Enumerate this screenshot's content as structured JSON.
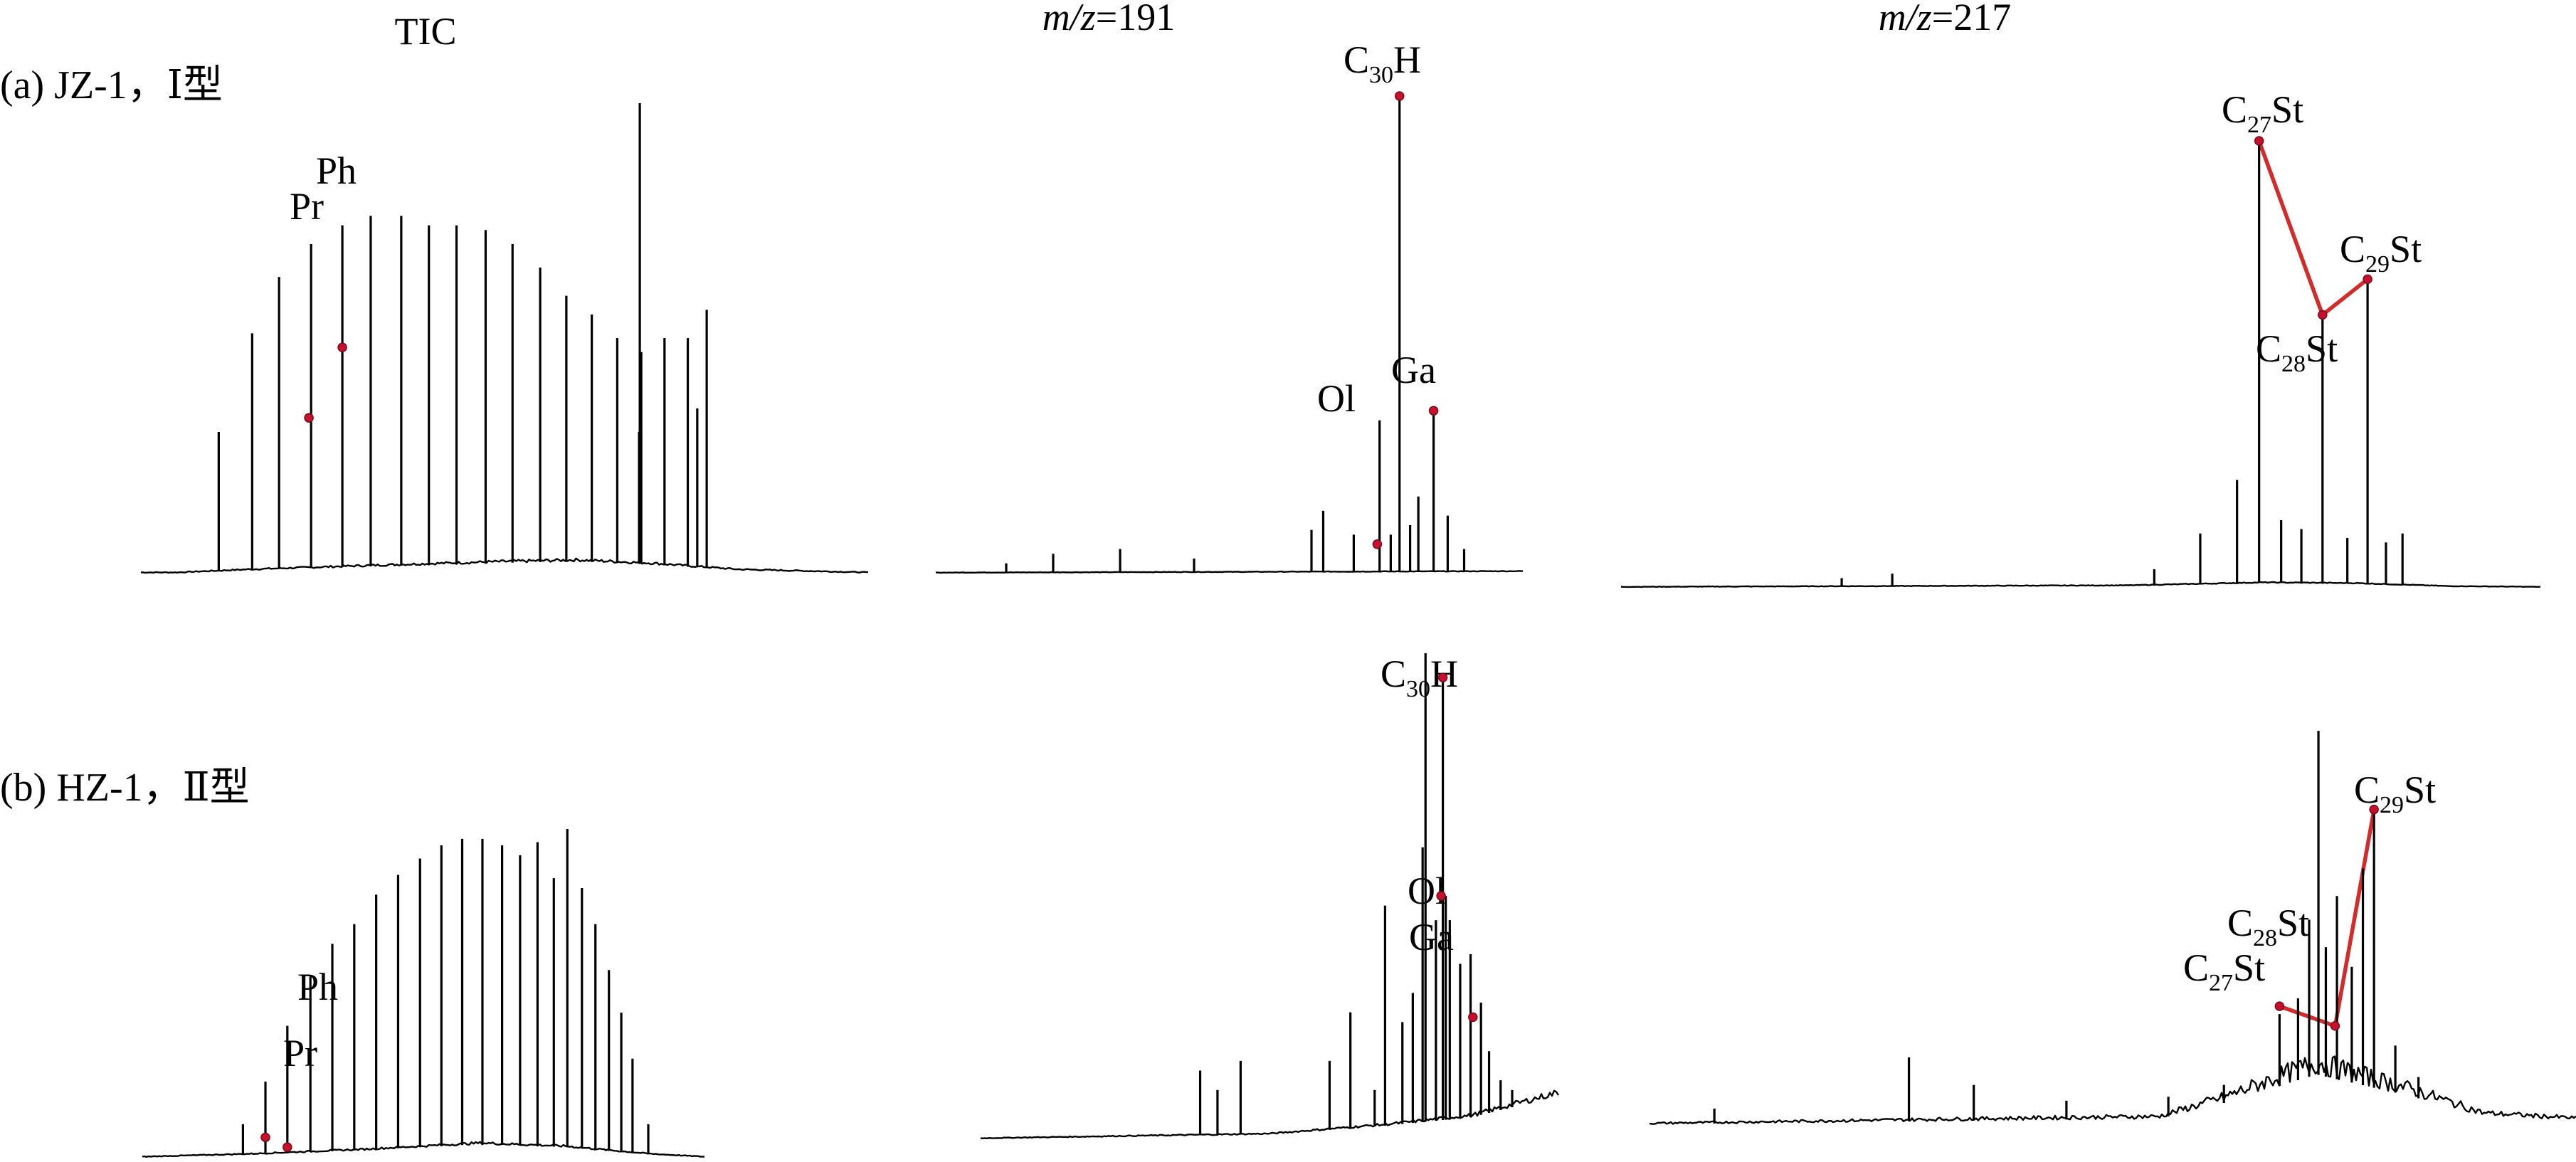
{
  "headers": {
    "tic": "TIC",
    "mz191_prefix": "m/z",
    "mz191_value": "=191",
    "mz217_prefix": "m/z",
    "mz217_value": "=217"
  },
  "rows": [
    {
      "label": "(a) JZ-1，Ⅰ型"
    },
    {
      "label": "(b) HZ-1，Ⅱ型"
    }
  ],
  "colors": {
    "trace": "#000000",
    "connector": "#d42a2a",
    "marker": "#c8102e"
  },
  "chart_data": [
    {
      "type": "line",
      "panel": "TIC",
      "sample": "(a) JZ-1，Ⅰ型",
      "labels": {
        "pr": "Pr",
        "ph": "Ph"
      },
      "peaks": [
        {
          "x": 0.107,
          "h": 0.3
        },
        {
          "x": 0.153,
          "h": 0.51
        },
        {
          "x": 0.19,
          "h": 0.63
        },
        {
          "x": 0.234,
          "h": 0.7
        },
        {
          "x": 0.277,
          "h": 0.74
        },
        {
          "x": 0.316,
          "h": 0.76
        },
        {
          "x": 0.358,
          "h": 0.76
        },
        {
          "x": 0.396,
          "h": 0.74
        },
        {
          "x": 0.434,
          "h": 0.74
        },
        {
          "x": 0.474,
          "h": 0.73
        },
        {
          "x": 0.511,
          "h": 0.7
        },
        {
          "x": 0.549,
          "h": 0.65
        },
        {
          "x": 0.585,
          "h": 0.59
        },
        {
          "x": 0.62,
          "h": 0.55
        },
        {
          "x": 0.655,
          "h": 0.5
        },
        {
          "x": 0.688,
          "h": 0.47
        },
        {
          "x": 0.72,
          "h": 0.5
        },
        {
          "x": 0.752,
          "h": 0.5
        },
        {
          "x": 0.778,
          "h": 0.56
        },
        {
          "x": 0.765,
          "h": 0.35
        },
        {
          "x": 0.685,
          "h": 0.3
        },
        {
          "x": 0.686,
          "h": 1.0
        }
      ],
      "markers": [
        {
          "x": 0.231,
          "h": 0.33
        },
        {
          "x": 0.277,
          "h": 0.48
        }
      ]
    },
    {
      "type": "line",
      "panel": "m/z=191",
      "sample": "(a) JZ-1，Ⅰ型",
      "labels": {
        "c30h": "C",
        "c30h_sub": "30",
        "c30h_tail": "H",
        "ol": "Ol",
        "ga": "Ga"
      },
      "peaks": [
        {
          "x": 0.12,
          "h": 0.02
        },
        {
          "x": 0.2,
          "h": 0.04
        },
        {
          "x": 0.314,
          "h": 0.05
        },
        {
          "x": 0.44,
          "h": 0.03
        },
        {
          "x": 0.64,
          "h": 0.09
        },
        {
          "x": 0.66,
          "h": 0.13
        },
        {
          "x": 0.712,
          "h": 0.08
        },
        {
          "x": 0.756,
          "h": 0.32
        },
        {
          "x": 0.775,
          "h": 0.08
        },
        {
          "x": 0.79,
          "h": 1.0
        },
        {
          "x": 0.808,
          "h": 0.1
        },
        {
          "x": 0.822,
          "h": 0.16
        },
        {
          "x": 0.848,
          "h": 0.34
        },
        {
          "x": 0.872,
          "h": 0.12
        },
        {
          "x": 0.9,
          "h": 0.05
        }
      ],
      "markers": [
        {
          "x": 0.79,
          "h": 1.0
        },
        {
          "x": 0.848,
          "h": 0.34
        },
        {
          "x": 0.752,
          "h": 0.06
        }
      ]
    },
    {
      "type": "line",
      "panel": "m/z=217",
      "sample": "(a) JZ-1，Ⅰ型",
      "labels": {
        "c27": "C",
        "c27_sub": "27",
        "c27_tail": "St",
        "c28": "C",
        "c28_sub": "28",
        "c28_tail": "St",
        "c29": "C",
        "c29_sub": "29",
        "c29_tail": "St"
      },
      "peaks": [
        {
          "x": 0.24,
          "h": 0.02
        },
        {
          "x": 0.295,
          "h": 0.03
        },
        {
          "x": 0.58,
          "h": 0.04
        },
        {
          "x": 0.63,
          "h": 0.12
        },
        {
          "x": 0.67,
          "h": 0.24
        },
        {
          "x": 0.694,
          "h": 1.0
        },
        {
          "x": 0.718,
          "h": 0.15
        },
        {
          "x": 0.74,
          "h": 0.13
        },
        {
          "x": 0.763,
          "h": 0.6
        },
        {
          "x": 0.79,
          "h": 0.11
        },
        {
          "x": 0.812,
          "h": 0.69
        },
        {
          "x": 0.832,
          "h": 0.1
        },
        {
          "x": 0.85,
          "h": 0.12
        }
      ],
      "markers": [
        {
          "x": 0.694,
          "h": 1.0
        },
        {
          "x": 0.763,
          "h": 0.61
        },
        {
          "x": 0.812,
          "h": 0.69
        }
      ]
    },
    {
      "type": "line",
      "panel": "TIC",
      "sample": "(b) HZ-1，Ⅱ型",
      "labels": {
        "pr": "Pr",
        "ph": "Ph"
      },
      "peaks": [
        {
          "x": 0.179,
          "h": 0.1
        },
        {
          "x": 0.219,
          "h": 0.23
        },
        {
          "x": 0.258,
          "h": 0.4
        },
        {
          "x": 0.299,
          "h": 0.55
        },
        {
          "x": 0.338,
          "h": 0.65
        },
        {
          "x": 0.377,
          "h": 0.71
        },
        {
          "x": 0.416,
          "h": 0.8
        },
        {
          "x": 0.455,
          "h": 0.86
        },
        {
          "x": 0.494,
          "h": 0.91
        },
        {
          "x": 0.532,
          "h": 0.95
        },
        {
          "x": 0.569,
          "h": 0.97
        },
        {
          "x": 0.605,
          "h": 0.97
        },
        {
          "x": 0.64,
          "h": 0.95
        },
        {
          "x": 0.672,
          "h": 0.92
        },
        {
          "x": 0.703,
          "h": 0.96
        },
        {
          "x": 0.732,
          "h": 0.85
        },
        {
          "x": 0.756,
          "h": 1.0
        },
        {
          "x": 0.782,
          "h": 0.82
        },
        {
          "x": 0.806,
          "h": 0.71
        },
        {
          "x": 0.83,
          "h": 0.57
        },
        {
          "x": 0.852,
          "h": 0.44
        },
        {
          "x": 0.872,
          "h": 0.3
        },
        {
          "x": 0.9,
          "h": 0.1
        }
      ],
      "markers": [
        {
          "x": 0.219,
          "h": 0.06
        },
        {
          "x": 0.258,
          "h": 0.03
        }
      ]
    },
    {
      "type": "line",
      "panel": "m/z=191",
      "sample": "(b) HZ-1，Ⅱ型",
      "labels": {
        "c30h": "C",
        "c30h_sub": "30",
        "c30h_tail": "H",
        "ol": "Ol",
        "ga": "Ga"
      },
      "peaks": [
        {
          "x": 0.38,
          "h": 0.14
        },
        {
          "x": 0.41,
          "h": 0.1
        },
        {
          "x": 0.45,
          "h": 0.16
        },
        {
          "x": 0.604,
          "h": 0.16
        },
        {
          "x": 0.64,
          "h": 0.26
        },
        {
          "x": 0.682,
          "h": 0.1
        },
        {
          "x": 0.7,
          "h": 0.48
        },
        {
          "x": 0.73,
          "h": 0.24
        },
        {
          "x": 0.748,
          "h": 0.3
        },
        {
          "x": 0.765,
          "h": 0.6
        },
        {
          "x": 0.77,
          "h": 1.0
        },
        {
          "x": 0.788,
          "h": 0.45
        },
        {
          "x": 0.8,
          "h": 0.95
        },
        {
          "x": 0.805,
          "h": 0.5
        },
        {
          "x": 0.812,
          "h": 0.45
        },
        {
          "x": 0.83,
          "h": 0.36
        },
        {
          "x": 0.848,
          "h": 0.38
        },
        {
          "x": 0.866,
          "h": 0.28
        },
        {
          "x": 0.88,
          "h": 0.18
        },
        {
          "x": 0.9,
          "h": 0.12
        },
        {
          "x": 0.92,
          "h": 0.1
        }
      ],
      "markers": [
        {
          "x": 0.8,
          "h": 0.95
        },
        {
          "x": 0.797,
          "h": 0.5
        },
        {
          "x": 0.852,
          "h": 0.25
        }
      ]
    },
    {
      "type": "line",
      "panel": "m/z=217",
      "sample": "(b) HZ-1，Ⅱ型",
      "labels": {
        "c27": "C",
        "c27_sub": "27",
        "c27_tail": "St",
        "c28": "C",
        "c28_sub": "28",
        "c28_tail": "St",
        "c29": "C",
        "c29_sub": "29",
        "c29_tail": "St"
      },
      "peaks": [
        {
          "x": 0.07,
          "h": 0.04
        },
        {
          "x": 0.28,
          "h": 0.17
        },
        {
          "x": 0.35,
          "h": 0.1
        },
        {
          "x": 0.45,
          "h": 0.06
        },
        {
          "x": 0.56,
          "h": 0.07
        },
        {
          "x": 0.62,
          "h": 0.1
        },
        {
          "x": 0.68,
          "h": 0.28
        },
        {
          "x": 0.7,
          "h": 0.32
        },
        {
          "x": 0.712,
          "h": 0.52
        },
        {
          "x": 0.722,
          "h": 1.0
        },
        {
          "x": 0.73,
          "h": 0.45
        },
        {
          "x": 0.742,
          "h": 0.58
        },
        {
          "x": 0.758,
          "h": 0.4
        },
        {
          "x": 0.77,
          "h": 0.65
        },
        {
          "x": 0.782,
          "h": 0.8
        },
        {
          "x": 0.805,
          "h": 0.2
        },
        {
          "x": 0.83,
          "h": 0.12
        }
      ],
      "markers": [
        {
          "x": 0.68,
          "h": 0.3
        },
        {
          "x": 0.74,
          "h": 0.25
        },
        {
          "x": 0.782,
          "h": 0.8
        }
      ]
    }
  ]
}
